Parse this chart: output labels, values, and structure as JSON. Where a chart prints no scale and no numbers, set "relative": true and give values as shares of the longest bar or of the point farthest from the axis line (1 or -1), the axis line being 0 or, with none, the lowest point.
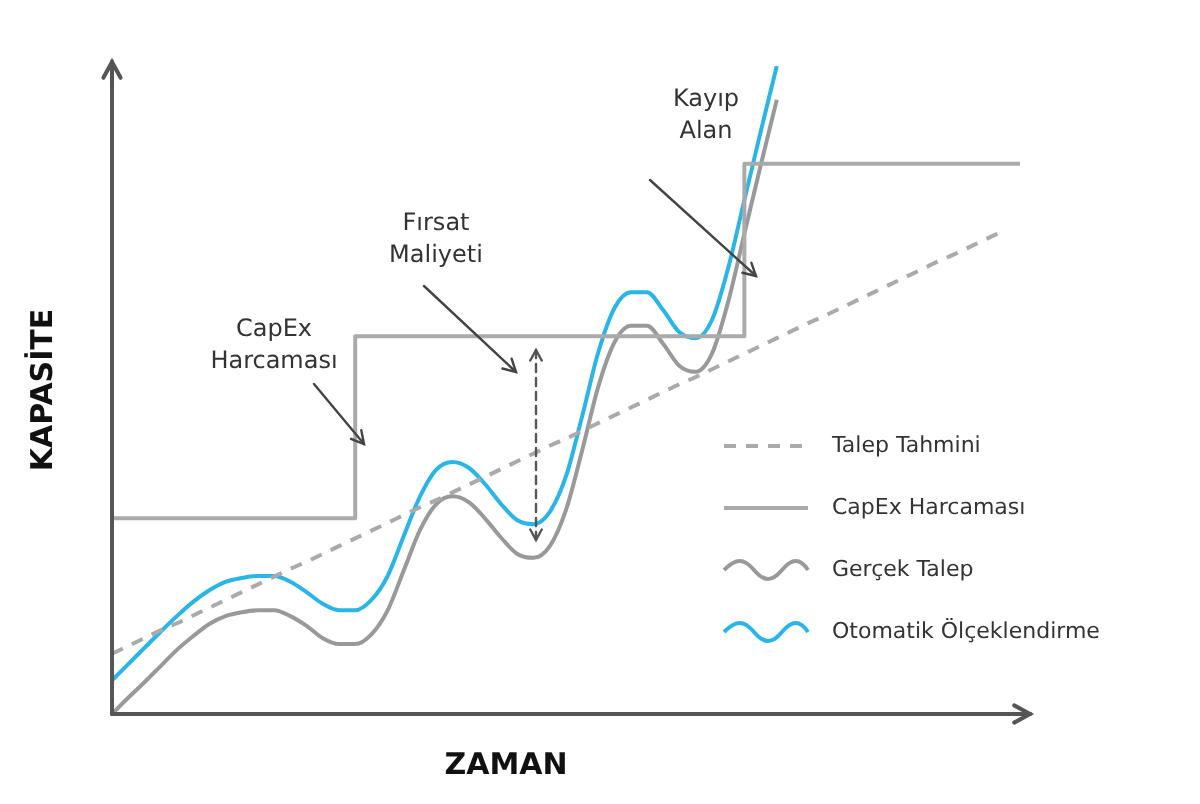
{
  "chart_data": {
    "type": "line",
    "relative": true,
    "xlabel": "ZAMAN",
    "ylabel": "KAPASİTE",
    "legend": "bottom right",
    "annotations": [
      "CapEx\nHarcaması",
      "Fırsat\nMaliyeti",
      "Kayıp\nAlan"
    ],
    "categories": [
      null,
      null,
      null,
      null,
      null,
      null,
      null,
      null,
      null,
      null,
      null,
      null,
      null,
      null,
      null,
      null,
      null,
      null,
      null,
      null,
      null,
      null,
      null,
      null,
      null,
      null,
      null,
      null,
      null,
      null,
      null,
      null,
      null,
      null,
      null,
      null,
      null,
      null,
      null,
      null,
      null,
      null,
      null,
      null,
      null,
      null,
      null,
      null,
      null,
      null,
      null,
      null,
      null,
      null,
      null,
      null,
      null
    ],
    "series": [
      {
        "name": "Talep Tahmini",
        "color": "#aaaaaa",
        "line_style": "dashed",
        "values": [
          0.093,
          0.105,
          0.117,
          0.129,
          0.14,
          0.152,
          0.164,
          0.176,
          0.188,
          0.2,
          0.212,
          0.224,
          0.235,
          0.247,
          0.259,
          0.271,
          0.283,
          0.295,
          0.307,
          0.319,
          0.33,
          0.342,
          0.354,
          0.366,
          0.378,
          0.39,
          0.402,
          0.414,
          0.425,
          0.437,
          0.449,
          0.461,
          0.473,
          0.485,
          0.497,
          0.509,
          0.52,
          0.532,
          0.544,
          0.556,
          0.568,
          0.58,
          0.592,
          0.604,
          0.615,
          0.627,
          0.639,
          0.651,
          0.663,
          0.675,
          0.687,
          0.699,
          0.71,
          0.722,
          0.734,
          0.746,
          null
        ]
      },
      {
        "name": "CapEx Harcaması",
        "type": "step",
        "color": "#aaaaaa",
        "values": [
          0.302,
          0.302,
          0.302,
          0.302,
          0.302,
          0.302,
          0.302,
          0.302,
          0.302,
          0.302,
          0.302,
          0.302,
          0.302,
          0.302,
          0.302,
          0.302,
          0.583,
          0.583,
          0.583,
          0.583,
          0.583,
          0.583,
          0.583,
          0.583,
          0.583,
          0.583,
          0.583,
          0.583,
          0.583,
          0.583,
          0.583,
          0.583,
          0.583,
          0.583,
          0.583,
          0.583,
          0.583,
          0.583,
          0.583,
          0.583,
          0.849,
          0.849,
          0.849,
          0.849,
          0.849,
          0.849,
          0.849,
          0.849,
          0.849,
          0.849,
          0.849,
          0.849,
          0.849,
          0.849,
          0.849,
          0.849,
          0.849
        ]
      },
      {
        "name": "Gerçek Talep",
        "color": "#999999",
        "values": [
          0,
          0.025,
          0.049,
          0.074,
          0.099,
          0.12,
          0.139,
          0.151,
          0.157,
          0.16,
          0.16,
          0.151,
          0.136,
          0.117,
          0.108,
          0.108,
          0.123,
          0.16,
          0.222,
          0.284,
          0.324,
          0.336,
          0.327,
          0.302,
          0.272,
          0.247,
          0.241,
          0.259,
          0.315,
          0.407,
          0.506,
          0.574,
          0.599,
          0.599,
          0.571,
          0.537,
          0.528,
          0.556,
          0.636,
          0.741,
          0.846,
          0.948,
          null,
          null,
          null,
          null,
          null,
          null,
          null,
          null,
          null,
          null,
          null,
          null,
          null,
          null,
          null
        ]
      },
      {
        "name": "Otomatik Ölçeklendirme",
        "color": "#29b6e6",
        "values": [
          0.052,
          0.077,
          0.102,
          0.127,
          0.151,
          0.173,
          0.191,
          0.204,
          0.21,
          0.213,
          0.213,
          0.204,
          0.188,
          0.17,
          0.16,
          0.16,
          0.176,
          0.213,
          0.275,
          0.336,
          0.377,
          0.389,
          0.38,
          0.355,
          0.324,
          0.299,
          0.293,
          0.312,
          0.367,
          0.46,
          0.559,
          0.627,
          0.651,
          0.651,
          0.623,
          0.589,
          0.58,
          0.608,
          0.688,
          0.793,
          0.898,
          1,
          null,
          null,
          null,
          null,
          null,
          null,
          null,
          null,
          null,
          null,
          null,
          null,
          null,
          null,
          null
        ]
      }
    ]
  }
}
